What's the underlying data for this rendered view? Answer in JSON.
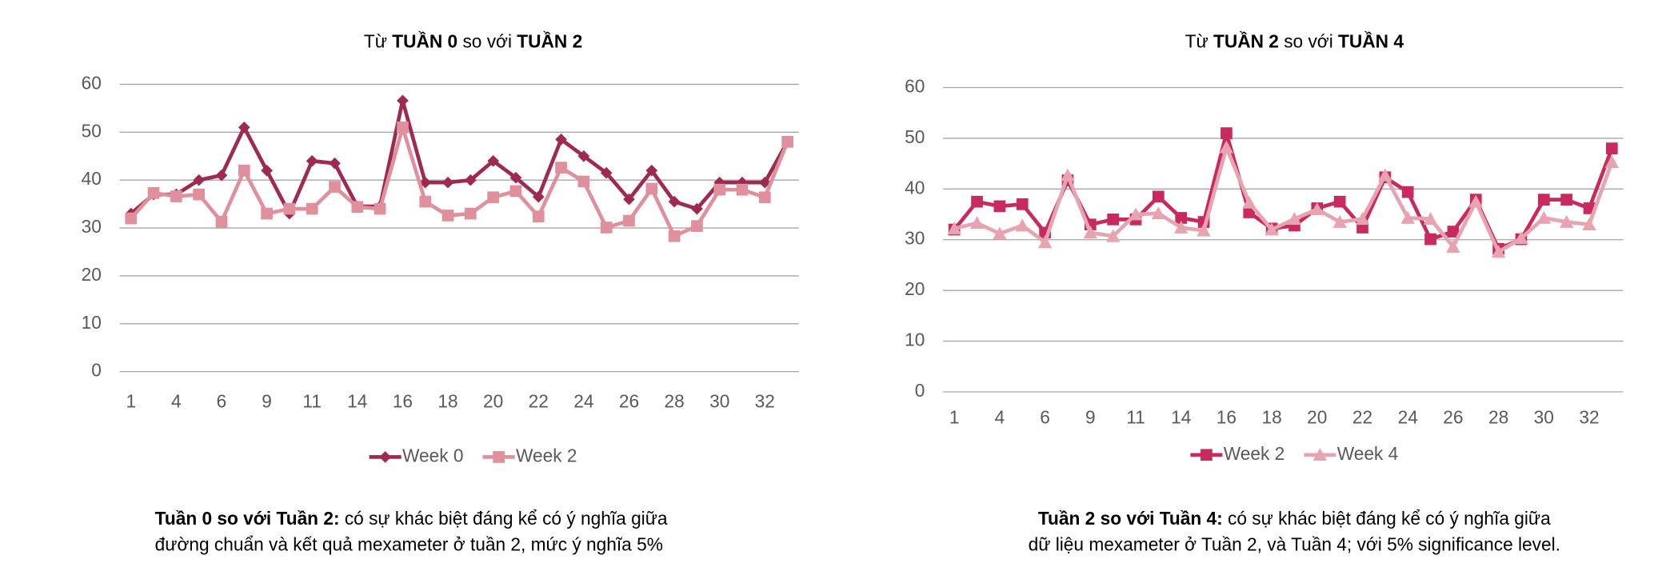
{
  "chart_data": [
    {
      "type": "line",
      "title_parts": [
        "Từ ",
        "TUẦN 0",
        " so với ",
        "TUẦN 2"
      ],
      "categories": [
        "1",
        null,
        "4",
        null,
        "6",
        null,
        "9",
        null,
        "11",
        null,
        "14",
        null,
        "16",
        null,
        "18",
        null,
        "20",
        null,
        "22",
        null,
        "24",
        null,
        "26",
        null,
        "28",
        null,
        "30",
        null,
        "32",
        null
      ],
      "ylim": [
        0,
        60
      ],
      "yticks": [
        0,
        10,
        20,
        30,
        40,
        50,
        60
      ],
      "grid": true,
      "legend": "bottom",
      "series": [
        {
          "name": "Week 0",
          "color": "#9e2a4f",
          "marker": "diamond",
          "values": [
            33,
            37,
            37,
            40,
            41,
            51,
            42,
            33,
            44,
            43.5,
            34.5,
            34.5,
            56.6,
            39.5,
            39.5,
            40,
            44,
            40.5,
            36.5,
            48.5,
            45,
            41.5,
            36,
            42,
            35.5,
            34,
            39.5,
            39.5,
            39.5,
            48
          ]
        },
        {
          "name": "Week 2",
          "color": "#e0909d",
          "marker": "square",
          "values": [
            32,
            37.3,
            36.6,
            37,
            31.3,
            42,
            33,
            34,
            34,
            38.6,
            34.4,
            34,
            51,
            35.5,
            32.6,
            33,
            36.4,
            37.7,
            32.4,
            42.6,
            39.7,
            30.1,
            31.5,
            38.2,
            28.3,
            30.4,
            38,
            38,
            36.4,
            48
          ]
        }
      ],
      "caption": {
        "bold": "Tuần 0 so với Tuần 2:",
        "lines": [
          " có sự khác biệt đáng kể có ý nghĩa giữa",
          "đường chuẩn và kết quả mexameter ở tuần 2, mức ý nghĩa 5%"
        ]
      }
    },
    {
      "type": "line",
      "title_parts": [
        "Từ ",
        "TUẦN 2",
        " so với ",
        "TUẦN 4"
      ],
      "categories": [
        "1",
        null,
        "4",
        null,
        "6",
        null,
        "9",
        null,
        "11",
        null,
        "14",
        null,
        "16",
        null,
        "18",
        null,
        "20",
        null,
        "22",
        null,
        "24",
        null,
        "26",
        null,
        "28",
        null,
        "30",
        null,
        "32",
        null
      ],
      "ylim": [
        0,
        60
      ],
      "yticks": [
        0,
        10,
        20,
        30,
        40,
        50,
        60
      ],
      "grid": true,
      "legend": "bottom",
      "series": [
        {
          "name": "Week 2",
          "color": "#c82a5e",
          "marker": "square",
          "values": [
            32,
            37.5,
            36.6,
            37,
            31.4,
            41.7,
            33,
            34,
            34,
            38.5,
            34.3,
            33.5,
            51,
            35.4,
            32.2,
            32.8,
            36.2,
            37.5,
            32.4,
            42.3,
            39.4,
            30.1,
            31.6,
            37.9,
            28.2,
            30.1,
            37.9,
            37.9,
            36.2,
            48
          ]
        },
        {
          "name": "Week 4",
          "color": "#e8a3b0",
          "marker": "triangle",
          "values": [
            32.2,
            33.3,
            31.2,
            32.8,
            29.5,
            42.7,
            31.4,
            30.7,
            35,
            35.2,
            32.4,
            31.8,
            48.2,
            37.3,
            32,
            34.1,
            36,
            33.5,
            34.1,
            42.7,
            34.3,
            34.1,
            28.6,
            37.5,
            27.6,
            30.3,
            34.3,
            33.5,
            33,
            45.3
          ]
        }
      ],
      "caption": {
        "bold": "Tuần 2 so với Tuần 4:",
        "lines": [
          " có sự khác biệt đáng kể có ý nghĩa giữa",
          "dữ liệu mexameter ở Tuần 2, và Tuần 4; với 5% significance level."
        ]
      }
    }
  ]
}
